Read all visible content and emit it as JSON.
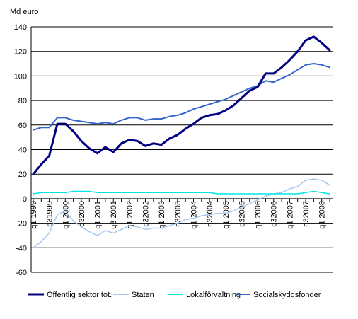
{
  "chart_data": {
    "type": "line",
    "unit_label": "Md euro",
    "ylim": [
      -60,
      140
    ],
    "y_ticks": [
      -60,
      -40,
      -20,
      0,
      20,
      40,
      60,
      80,
      100,
      120,
      140
    ],
    "grid": true,
    "legend_position": "bottom",
    "x_labels": [
      "q1 1999",
      "q31999",
      "q1 2000",
      "q32000",
      "q1 2001",
      "q3 2001",
      "q1 2002",
      "q32002",
      "q1 2003",
      "q32003",
      "q1 2004",
      "q32004",
      "q1 2005",
      "q32005",
      "q1 2006",
      "q32006",
      "q1 2007",
      "q32007",
      "q1 2008"
    ],
    "x_label_indices": [
      0,
      2,
      4,
      6,
      8,
      10,
      12,
      14,
      16,
      18,
      20,
      22,
      24,
      26,
      28,
      30,
      32,
      34,
      36
    ],
    "series": [
      {
        "name": "Offentlig sektor tot.",
        "color": "#000080",
        "width": 3,
        "values": [
          20,
          28,
          35,
          61,
          61,
          55,
          47,
          41,
          37,
          42,
          38,
          45,
          48,
          47,
          43,
          45,
          44,
          49,
          52,
          57,
          61,
          66,
          68,
          69,
          72,
          76,
          82,
          88,
          91,
          102,
          102,
          107,
          113,
          120,
          129,
          132,
          127,
          121
        ]
      },
      {
        "name": "Staten",
        "color": "#a6c8f0",
        "width": 1.5,
        "values": [
          -40,
          -35,
          -28,
          -13,
          -10,
          -18,
          -23,
          -27,
          -30,
          -26,
          -28,
          -25,
          -22,
          -23,
          -25,
          -24,
          -24,
          -22,
          -20,
          -17,
          -16,
          -14,
          -13,
          -12,
          -12,
          -10,
          -7,
          -4,
          -1,
          2,
          4,
          5,
          8,
          10,
          15,
          16,
          15,
          11
        ]
      },
      {
        "name": "Lokalförvaltning",
        "color": "#00e5e5",
        "width": 1.5,
        "values": [
          4,
          5,
          5,
          5,
          5,
          6,
          6,
          6,
          5,
          5,
          5,
          5,
          5,
          5,
          5,
          5,
          5,
          5,
          5,
          5,
          5,
          5,
          5,
          4,
          4,
          4,
          4,
          4,
          4,
          4,
          4,
          4,
          4,
          4,
          5,
          6,
          5,
          4
        ]
      },
      {
        "name": "Socialskyddsfonder",
        "color": "#3366cc",
        "width": 2,
        "values": [
          56,
          58,
          58,
          66,
          66,
          64,
          63,
          62,
          61,
          62,
          61,
          64,
          66,
          66,
          64,
          65,
          65,
          67,
          68,
          70,
          73,
          75,
          77,
          79,
          81,
          84,
          87,
          90,
          92,
          96,
          95,
          98,
          101,
          105,
          109,
          110,
          109,
          107
        ]
      }
    ]
  }
}
